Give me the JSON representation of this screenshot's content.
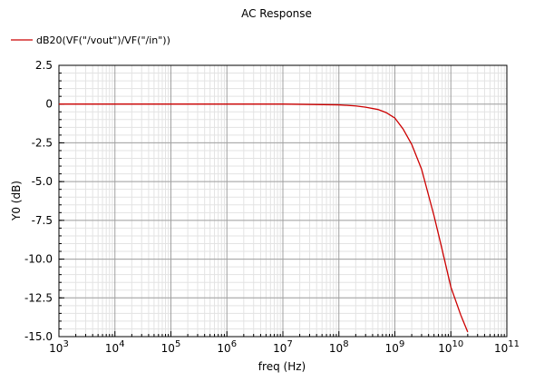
{
  "chart_data": {
    "type": "line",
    "title": "AC Response",
    "xlabel": "freq (Hz)",
    "ylabel": "Y0 (dB)",
    "xscale": "log",
    "xlim": [
      1000,
      100000000000
    ],
    "ylim": [
      -15.0,
      2.5
    ],
    "grid": true,
    "legend_position": "top-left",
    "x_ticks": [
      {
        "value": 1000,
        "base": "10",
        "exp": "3"
      },
      {
        "value": 10000,
        "base": "10",
        "exp": "4"
      },
      {
        "value": 100000,
        "base": "10",
        "exp": "5"
      },
      {
        "value": 1000000,
        "base": "10",
        "exp": "6"
      },
      {
        "value": 10000000,
        "base": "10",
        "exp": "7"
      },
      {
        "value": 100000000,
        "base": "10",
        "exp": "8"
      },
      {
        "value": 1000000000,
        "base": "10",
        "exp": "9"
      },
      {
        "value": 10000000000,
        "base": "10",
        "exp": "10"
      },
      {
        "value": 100000000000,
        "base": "10",
        "exp": "11"
      }
    ],
    "y_ticks": [
      {
        "value": 2.5,
        "label": "2.5"
      },
      {
        "value": 0,
        "label": "0"
      },
      {
        "value": -2.5,
        "label": "-2.5"
      },
      {
        "value": -5.0,
        "label": "-5.0"
      },
      {
        "value": -7.5,
        "label": "-7.5"
      },
      {
        "value": -10.0,
        "label": "-10.0"
      },
      {
        "value": -12.5,
        "label": "-12.5"
      },
      {
        "value": -15.0,
        "label": "-15.0"
      }
    ],
    "series": [
      {
        "name": "dB20(VF(\"/vout\")/VF(\"/in\"))",
        "color": "#cc0000",
        "x": [
          1000,
          10000000,
          100000000,
          200000000,
          300000000,
          500000000,
          700000000,
          1000000000,
          1400000000,
          2000000000,
          3000000000,
          5000000000,
          7000000000,
          10000000000,
          15000000000,
          20000000000
        ],
        "y": [
          0,
          0,
          -0.05,
          -0.12,
          -0.2,
          -0.35,
          -0.55,
          -0.9,
          -1.6,
          -2.6,
          -4.2,
          -7.2,
          -9.4,
          -11.8,
          -13.6,
          -14.7
        ]
      }
    ]
  }
}
